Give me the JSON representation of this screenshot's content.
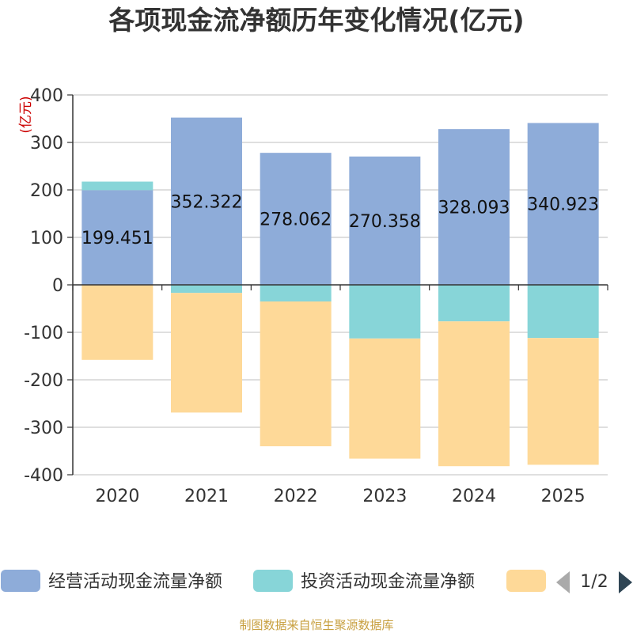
{
  "chart_data": {
    "type": "bar",
    "stacked": true,
    "title": "各项现金流净额历年变化情况(亿元)",
    "ylabel": "(亿元)",
    "xlabel": "",
    "ylim": [
      -400,
      400
    ],
    "yticks": [
      400,
      300,
      200,
      100,
      0,
      -100,
      -200,
      -300,
      -400
    ],
    "grid": true,
    "categories": [
      "2020",
      "2021",
      "2022",
      "2023",
      "2024",
      "2025"
    ],
    "series": [
      {
        "name": "经营活动现金流量净额",
        "color": "#8eacd9",
        "values": [
          199.451,
          352.322,
          278.062,
          270.358,
          328.093,
          340.923
        ],
        "labels": [
          "199.451",
          "352.322",
          "278.062",
          "270.358",
          "328.093",
          "340.923"
        ]
      },
      {
        "name": "投资活动现金流量净额",
        "color": "#87d5d8",
        "values": [
          18,
          -17,
          -35,
          -113,
          -77,
          -112
        ]
      },
      {
        "name": "",
        "color": "#fed998",
        "values": [
          -158,
          -252,
          -305,
          -253,
          -305,
          -267
        ]
      }
    ],
    "legend": {
      "position": "bottom",
      "page": "1/2"
    }
  },
  "footer": {
    "source": "制图数据来自恒生聚源数据库"
  }
}
